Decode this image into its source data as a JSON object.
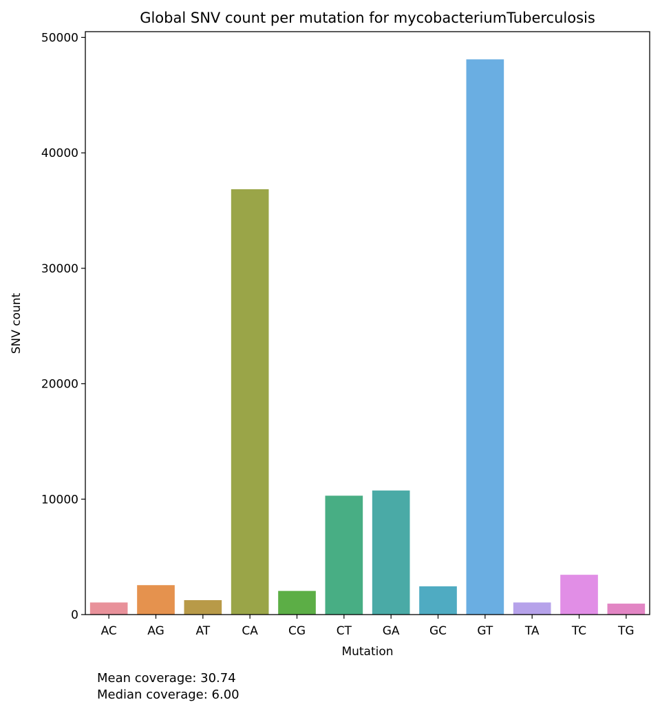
{
  "chart_data": {
    "type": "bar",
    "title": "Global SNV count per mutation for mycobacteriumTuberculosis",
    "xlabel": "Mutation",
    "ylabel": "SNV count",
    "ylim": [
      0,
      50500
    ],
    "yticks": [
      0,
      10000,
      20000,
      30000,
      40000,
      50000
    ],
    "categories": [
      "AC",
      "AG",
      "AT",
      "CA",
      "CG",
      "CT",
      "GA",
      "GC",
      "GT",
      "TA",
      "TC",
      "TG"
    ],
    "values": [
      1050,
      2550,
      1250,
      36850,
      2050,
      10300,
      10750,
      2450,
      48100,
      1050,
      3450,
      950
    ],
    "colors": [
      "#e8919a",
      "#e5924e",
      "#b89a48",
      "#9aa548",
      "#5cae46",
      "#48ae84",
      "#4aaaa6",
      "#4fabc2",
      "#6aaee2",
      "#b6a2ea",
      "#e18ee6",
      "#e285c4"
    ],
    "grid": false,
    "legend": "none"
  },
  "notes": {
    "mean": "Mean coverage: 30.74",
    "median": "Median coverage: 6.00"
  }
}
